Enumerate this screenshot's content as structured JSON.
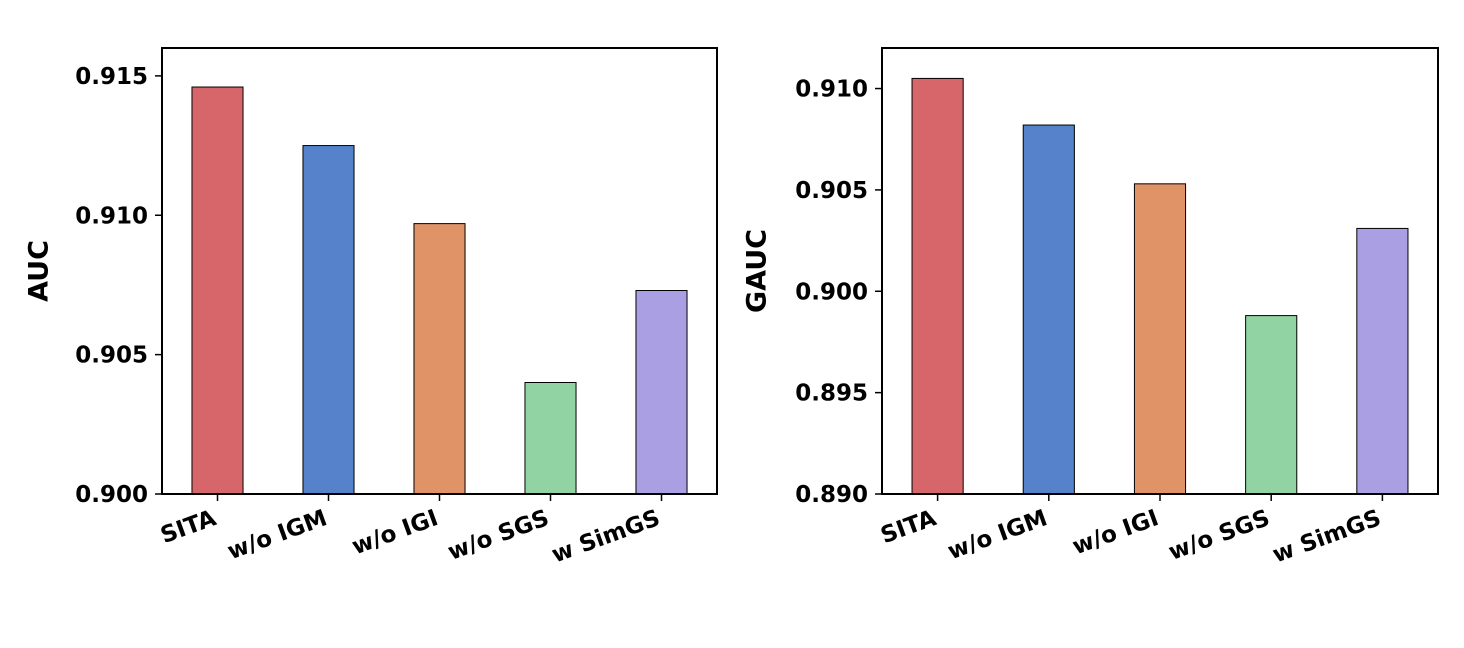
{
  "chart_data": [
    {
      "type": "bar",
      "categories": [
        "SITA",
        "w/o IGM",
        "w/o IGI",
        "w/o SGS",
        "w SimGS"
      ],
      "values": [
        0.9146,
        0.9125,
        0.9097,
        0.904,
        0.9073
      ],
      "ylabel": "AUC",
      "xlabel": "",
      "title": "",
      "ylim": [
        0.9,
        0.916
      ],
      "yticks": [
        "0.900",
        "0.905",
        "0.910",
        "0.915"
      ],
      "grid": false,
      "colors": [
        "#d6666a",
        "#5582cb",
        "#df9366",
        "#91d3a2",
        "#ab9fe3"
      ]
    },
    {
      "type": "bar",
      "categories": [
        "SITA",
        "w/o IGM",
        "w/o IGI",
        "w/o SGS",
        "w SimGS"
      ],
      "values": [
        0.9105,
        0.9082,
        0.9053,
        0.8988,
        0.9031
      ],
      "ylabel": "GAUC",
      "xlabel": "",
      "title": "",
      "ylim": [
        0.89,
        0.912
      ],
      "yticks": [
        "0.890",
        "0.895",
        "0.900",
        "0.905",
        "0.910"
      ],
      "grid": false,
      "colors": [
        "#d6666a",
        "#5582cb",
        "#df9366",
        "#91d3a2",
        "#ab9fe3"
      ]
    }
  ]
}
